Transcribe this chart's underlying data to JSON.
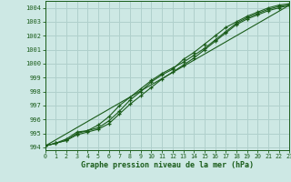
{
  "xlabel": "Graphe pression niveau de la mer (hPa)",
  "xlim": [
    0,
    23
  ],
  "ylim": [
    993.8,
    1004.5
  ],
  "yticks": [
    994,
    995,
    996,
    997,
    998,
    999,
    1000,
    1001,
    1002,
    1003,
    1004
  ],
  "xticks": [
    0,
    1,
    2,
    3,
    4,
    5,
    6,
    7,
    8,
    9,
    10,
    11,
    12,
    13,
    14,
    15,
    16,
    17,
    18,
    19,
    20,
    21,
    22,
    23
  ],
  "bg_color": "#cde8e4",
  "grid_color": "#b0d0cc",
  "line_color": "#1a5c1a",
  "font_color": "#1a5c1a",
  "series1": [
    994.1,
    994.3,
    994.5,
    995.0,
    995.2,
    995.6,
    996.2,
    997.0,
    997.6,
    998.2,
    998.8,
    999.3,
    999.7,
    1000.1,
    1000.6,
    1001.1,
    1001.7,
    1002.3,
    1002.9,
    1003.3,
    1003.6,
    1003.9,
    1004.1,
    1004.2
  ],
  "series2": [
    994.1,
    994.3,
    994.6,
    995.1,
    995.2,
    995.4,
    995.9,
    996.6,
    997.4,
    998.0,
    998.7,
    999.2,
    999.6,
    1000.3,
    1000.8,
    1001.4,
    1002.0,
    1002.6,
    1003.0,
    1003.4,
    1003.7,
    1004.0,
    1004.2,
    1004.3
  ],
  "series3": [
    994.1,
    994.3,
    994.5,
    994.9,
    995.1,
    995.3,
    995.7,
    996.4,
    997.1,
    997.7,
    998.3,
    998.9,
    999.4,
    999.9,
    1000.4,
    1001.0,
    1001.6,
    1002.2,
    1002.8,
    1003.2,
    1003.5,
    1003.8,
    1004.0,
    1004.2
  ],
  "trend_x": [
    0,
    23
  ],
  "trend_y": [
    994.1,
    1004.2
  ]
}
